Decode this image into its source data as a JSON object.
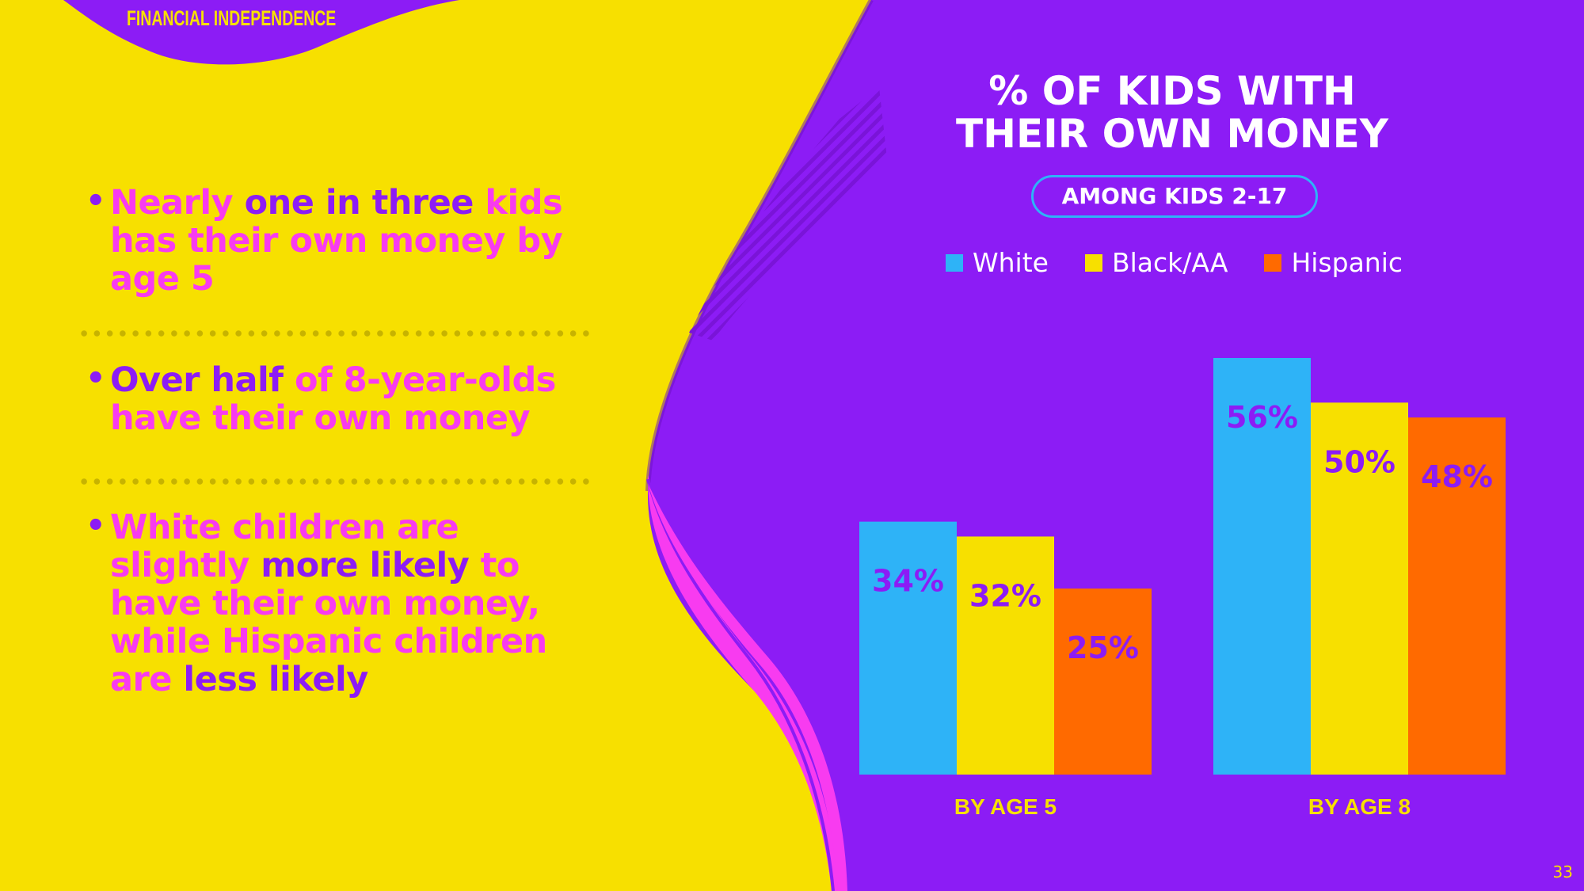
{
  "header": {
    "section_label": "FINANCIAL INDEPENDENCE"
  },
  "bullets": [
    {
      "parts": [
        {
          "text": "Nearly ",
          "hl": false
        },
        {
          "text": "one in three",
          "hl": true
        },
        {
          "text": " kids has their own money by age 5",
          "hl": false
        }
      ]
    },
    {
      "parts": [
        {
          "text": "Over half",
          "hl": true
        },
        {
          "text": " of 8-year-olds have their own money",
          "hl": false
        }
      ]
    },
    {
      "parts": [
        {
          "text": "White children are slightly ",
          "hl": false
        },
        {
          "text": "more likely",
          "hl": true
        },
        {
          "text": " to have their own money, while Hispanic children are ",
          "hl": false
        },
        {
          "text": "less likely",
          "hl": true
        }
      ]
    }
  ],
  "colors": {
    "purple": "#8c1cf5",
    "yellow": "#f7e000",
    "pink": "#f83bf0",
    "blue": "#2eb3f7",
    "orange": "#ff6a00"
  },
  "chart_data": {
    "type": "bar",
    "title": "% OF KIDS WITH THEIR OWN MONEY",
    "subtitle": "AMONG KIDS 2-17",
    "categories": [
      "BY AGE 5",
      "BY AGE 8"
    ],
    "series": [
      {
        "name": "White",
        "color": "#2eb3f7",
        "values": [
          34,
          56
        ]
      },
      {
        "name": "Black/AA",
        "color": "#f7e000",
        "values": [
          32,
          50
        ]
      },
      {
        "name": "Hispanic",
        "color": "#ff6a00",
        "values": [
          25,
          48
        ]
      }
    ],
    "data_labels": [
      [
        "34%",
        "56%"
      ],
      [
        "32%",
        "50%"
      ],
      [
        "25%",
        "48%"
      ]
    ],
    "legend_position": "top",
    "grid": false
  },
  "footer": {
    "page_number": "33"
  }
}
